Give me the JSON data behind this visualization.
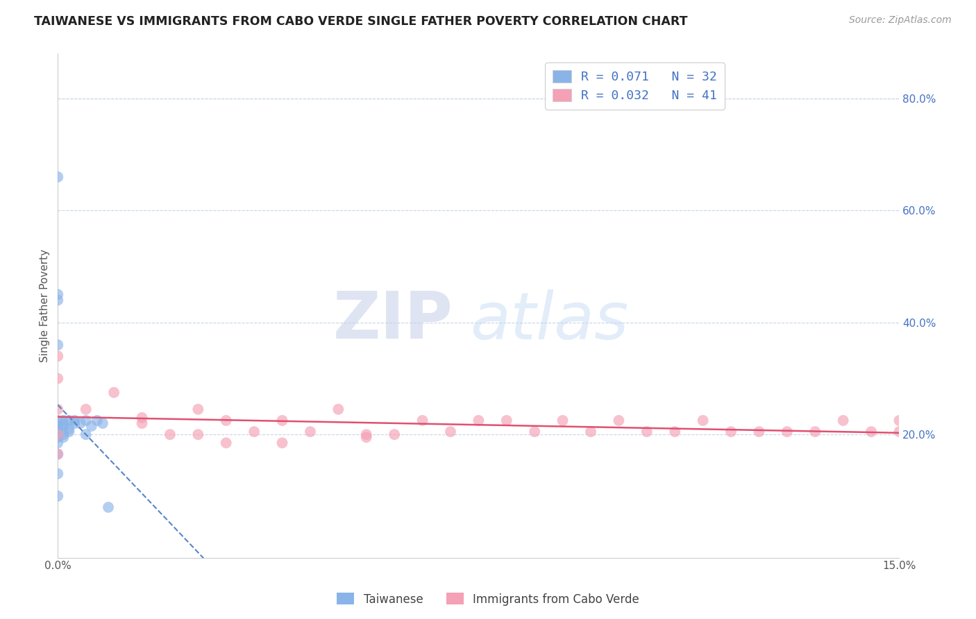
{
  "title": "TAIWANESE VS IMMIGRANTS FROM CABO VERDE SINGLE FATHER POVERTY CORRELATION CHART",
  "source": "Source: ZipAtlas.com",
  "ylabel_label": "Single Father Poverty",
  "right_yticks": [
    20.0,
    40.0,
    60.0,
    80.0
  ],
  "xlim": [
    0.0,
    0.15
  ],
  "ylim": [
    -0.02,
    0.88
  ],
  "legend_labels": [
    "Taiwanese",
    "Immigrants from Cabo Verde"
  ],
  "blue_color": "#8ab4e8",
  "pink_color": "#f4a0b5",
  "blue_line_color": "#5585c8",
  "pink_line_color": "#e05070",
  "watermark_zip": "ZIP",
  "watermark_atlas": "atlas",
  "background_color": "#ffffff",
  "gridline_color": "#c8d4e8",
  "tw_x": [
    0.0,
    0.0,
    0.0,
    0.0,
    0.0,
    0.0,
    0.0,
    0.0,
    0.0,
    0.0,
    0.0,
    0.0,
    0.0,
    0.0,
    0.0,
    0.001,
    0.001,
    0.001,
    0.001,
    0.001,
    0.002,
    0.002,
    0.002,
    0.003,
    0.003,
    0.004,
    0.005,
    0.005,
    0.006,
    0.007,
    0.008,
    0.009
  ],
  "tw_y": [
    0.66,
    0.45,
    0.44,
    0.36,
    0.225,
    0.215,
    0.21,
    0.205,
    0.2,
    0.2,
    0.195,
    0.185,
    0.165,
    0.13,
    0.09,
    0.225,
    0.22,
    0.215,
    0.2,
    0.195,
    0.225,
    0.21,
    0.205,
    0.225,
    0.22,
    0.22,
    0.225,
    0.2,
    0.215,
    0.225,
    0.22,
    0.07
  ],
  "cv_x": [
    0.0,
    0.0,
    0.0,
    0.0,
    0.0,
    0.005,
    0.01,
    0.015,
    0.015,
    0.02,
    0.025,
    0.025,
    0.03,
    0.03,
    0.035,
    0.04,
    0.04,
    0.045,
    0.05,
    0.055,
    0.055,
    0.06,
    0.065,
    0.07,
    0.075,
    0.08,
    0.085,
    0.09,
    0.095,
    0.1,
    0.105,
    0.11,
    0.115,
    0.12,
    0.125,
    0.13,
    0.135,
    0.14,
    0.145,
    0.15,
    0.15
  ],
  "cv_y": [
    0.34,
    0.3,
    0.245,
    0.2,
    0.165,
    0.245,
    0.275,
    0.23,
    0.22,
    0.2,
    0.245,
    0.2,
    0.225,
    0.185,
    0.205,
    0.225,
    0.185,
    0.205,
    0.245,
    0.2,
    0.195,
    0.2,
    0.225,
    0.205,
    0.225,
    0.225,
    0.205,
    0.225,
    0.205,
    0.225,
    0.205,
    0.205,
    0.225,
    0.205,
    0.205,
    0.205,
    0.205,
    0.225,
    0.205,
    0.205,
    0.225
  ]
}
